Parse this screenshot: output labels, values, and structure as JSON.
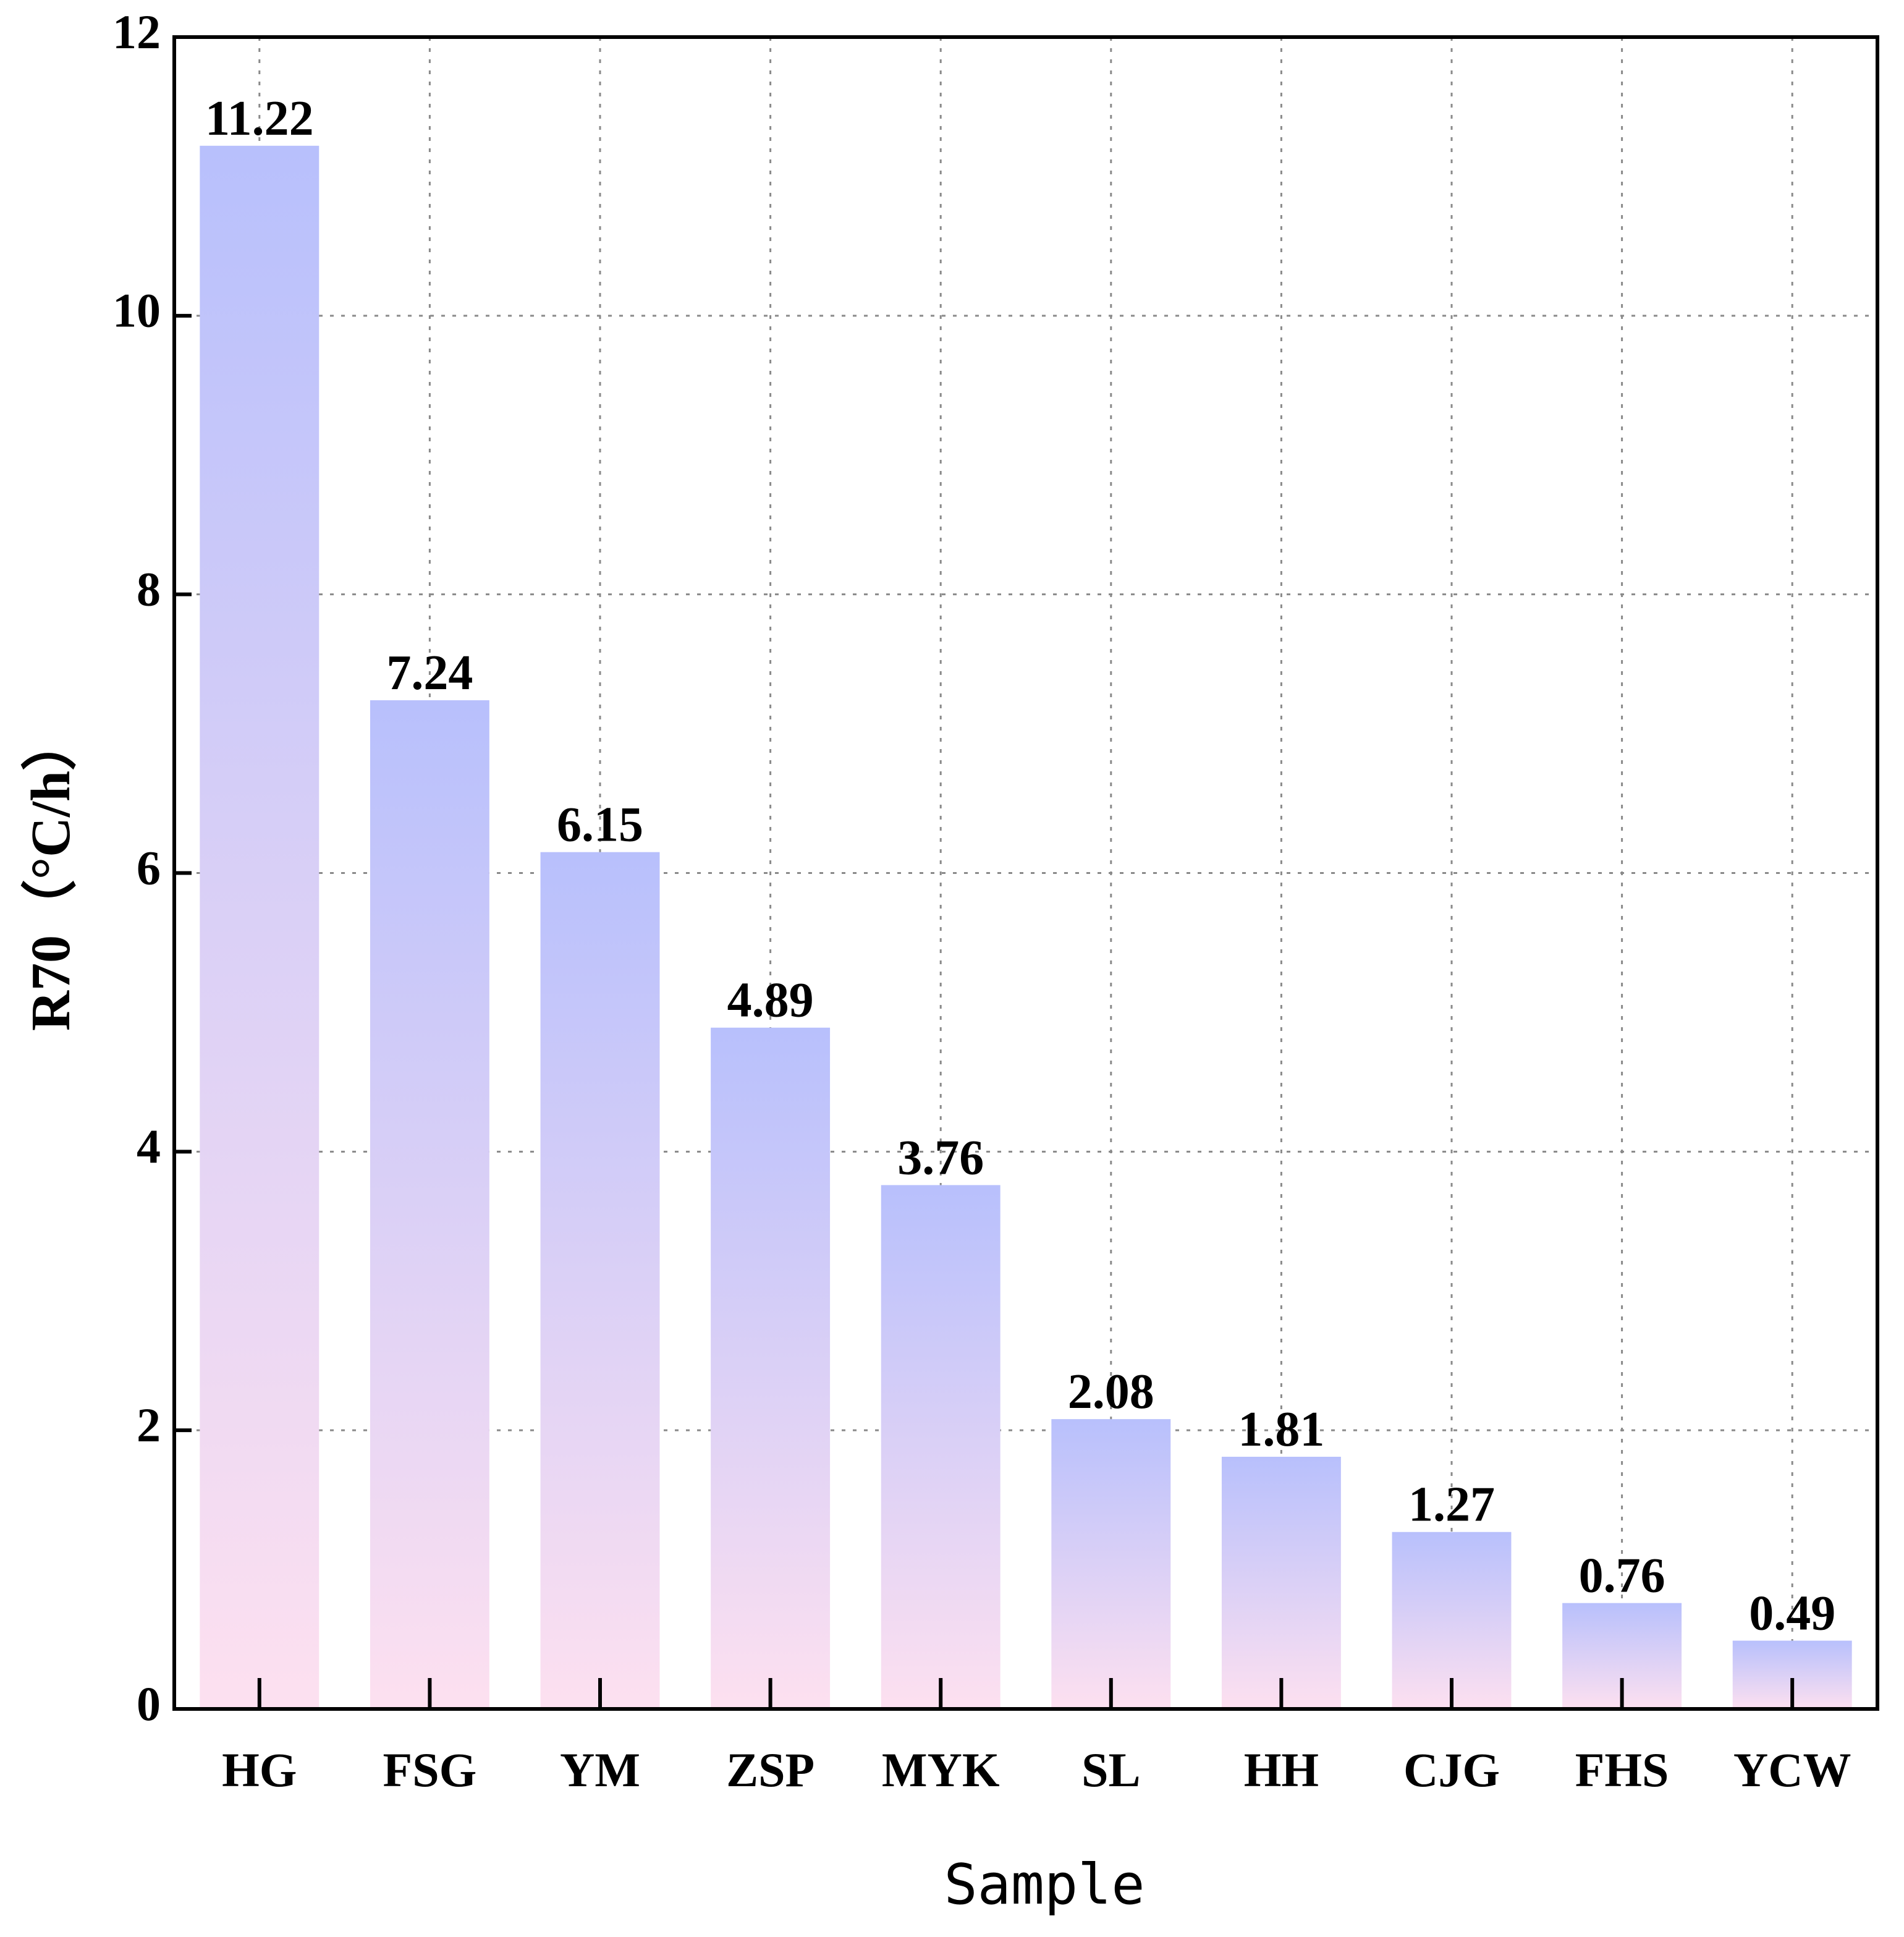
{
  "chart_data": {
    "type": "bar",
    "title": "",
    "xlabel": "Sample",
    "ylabel": "R70（°C/h）",
    "categories": [
      "HG",
      "FSG",
      "YM",
      "ZSP",
      "MYK",
      "SL",
      "HH",
      "CJG",
      "FHS",
      "YCW"
    ],
    "values": [
      11.22,
      7.24,
      6.15,
      4.89,
      3.76,
      2.08,
      1.81,
      1.27,
      0.76,
      0.49
    ],
    "data_labels": [
      "11.22",
      "7.24",
      "6.15",
      "4.89",
      "3.76",
      "2.08",
      "1.81",
      "1.27",
      "0.76",
      "0.49"
    ],
    "ylim": [
      0,
      12
    ],
    "yticks": [
      0,
      2,
      4,
      6,
      8,
      10,
      12
    ],
    "grid": true,
    "colors": {
      "bar_top": "#b8c0fc",
      "bar_bottom": "#fde0f0",
      "axis": "#000000",
      "grid": "#8a8a8a"
    }
  }
}
